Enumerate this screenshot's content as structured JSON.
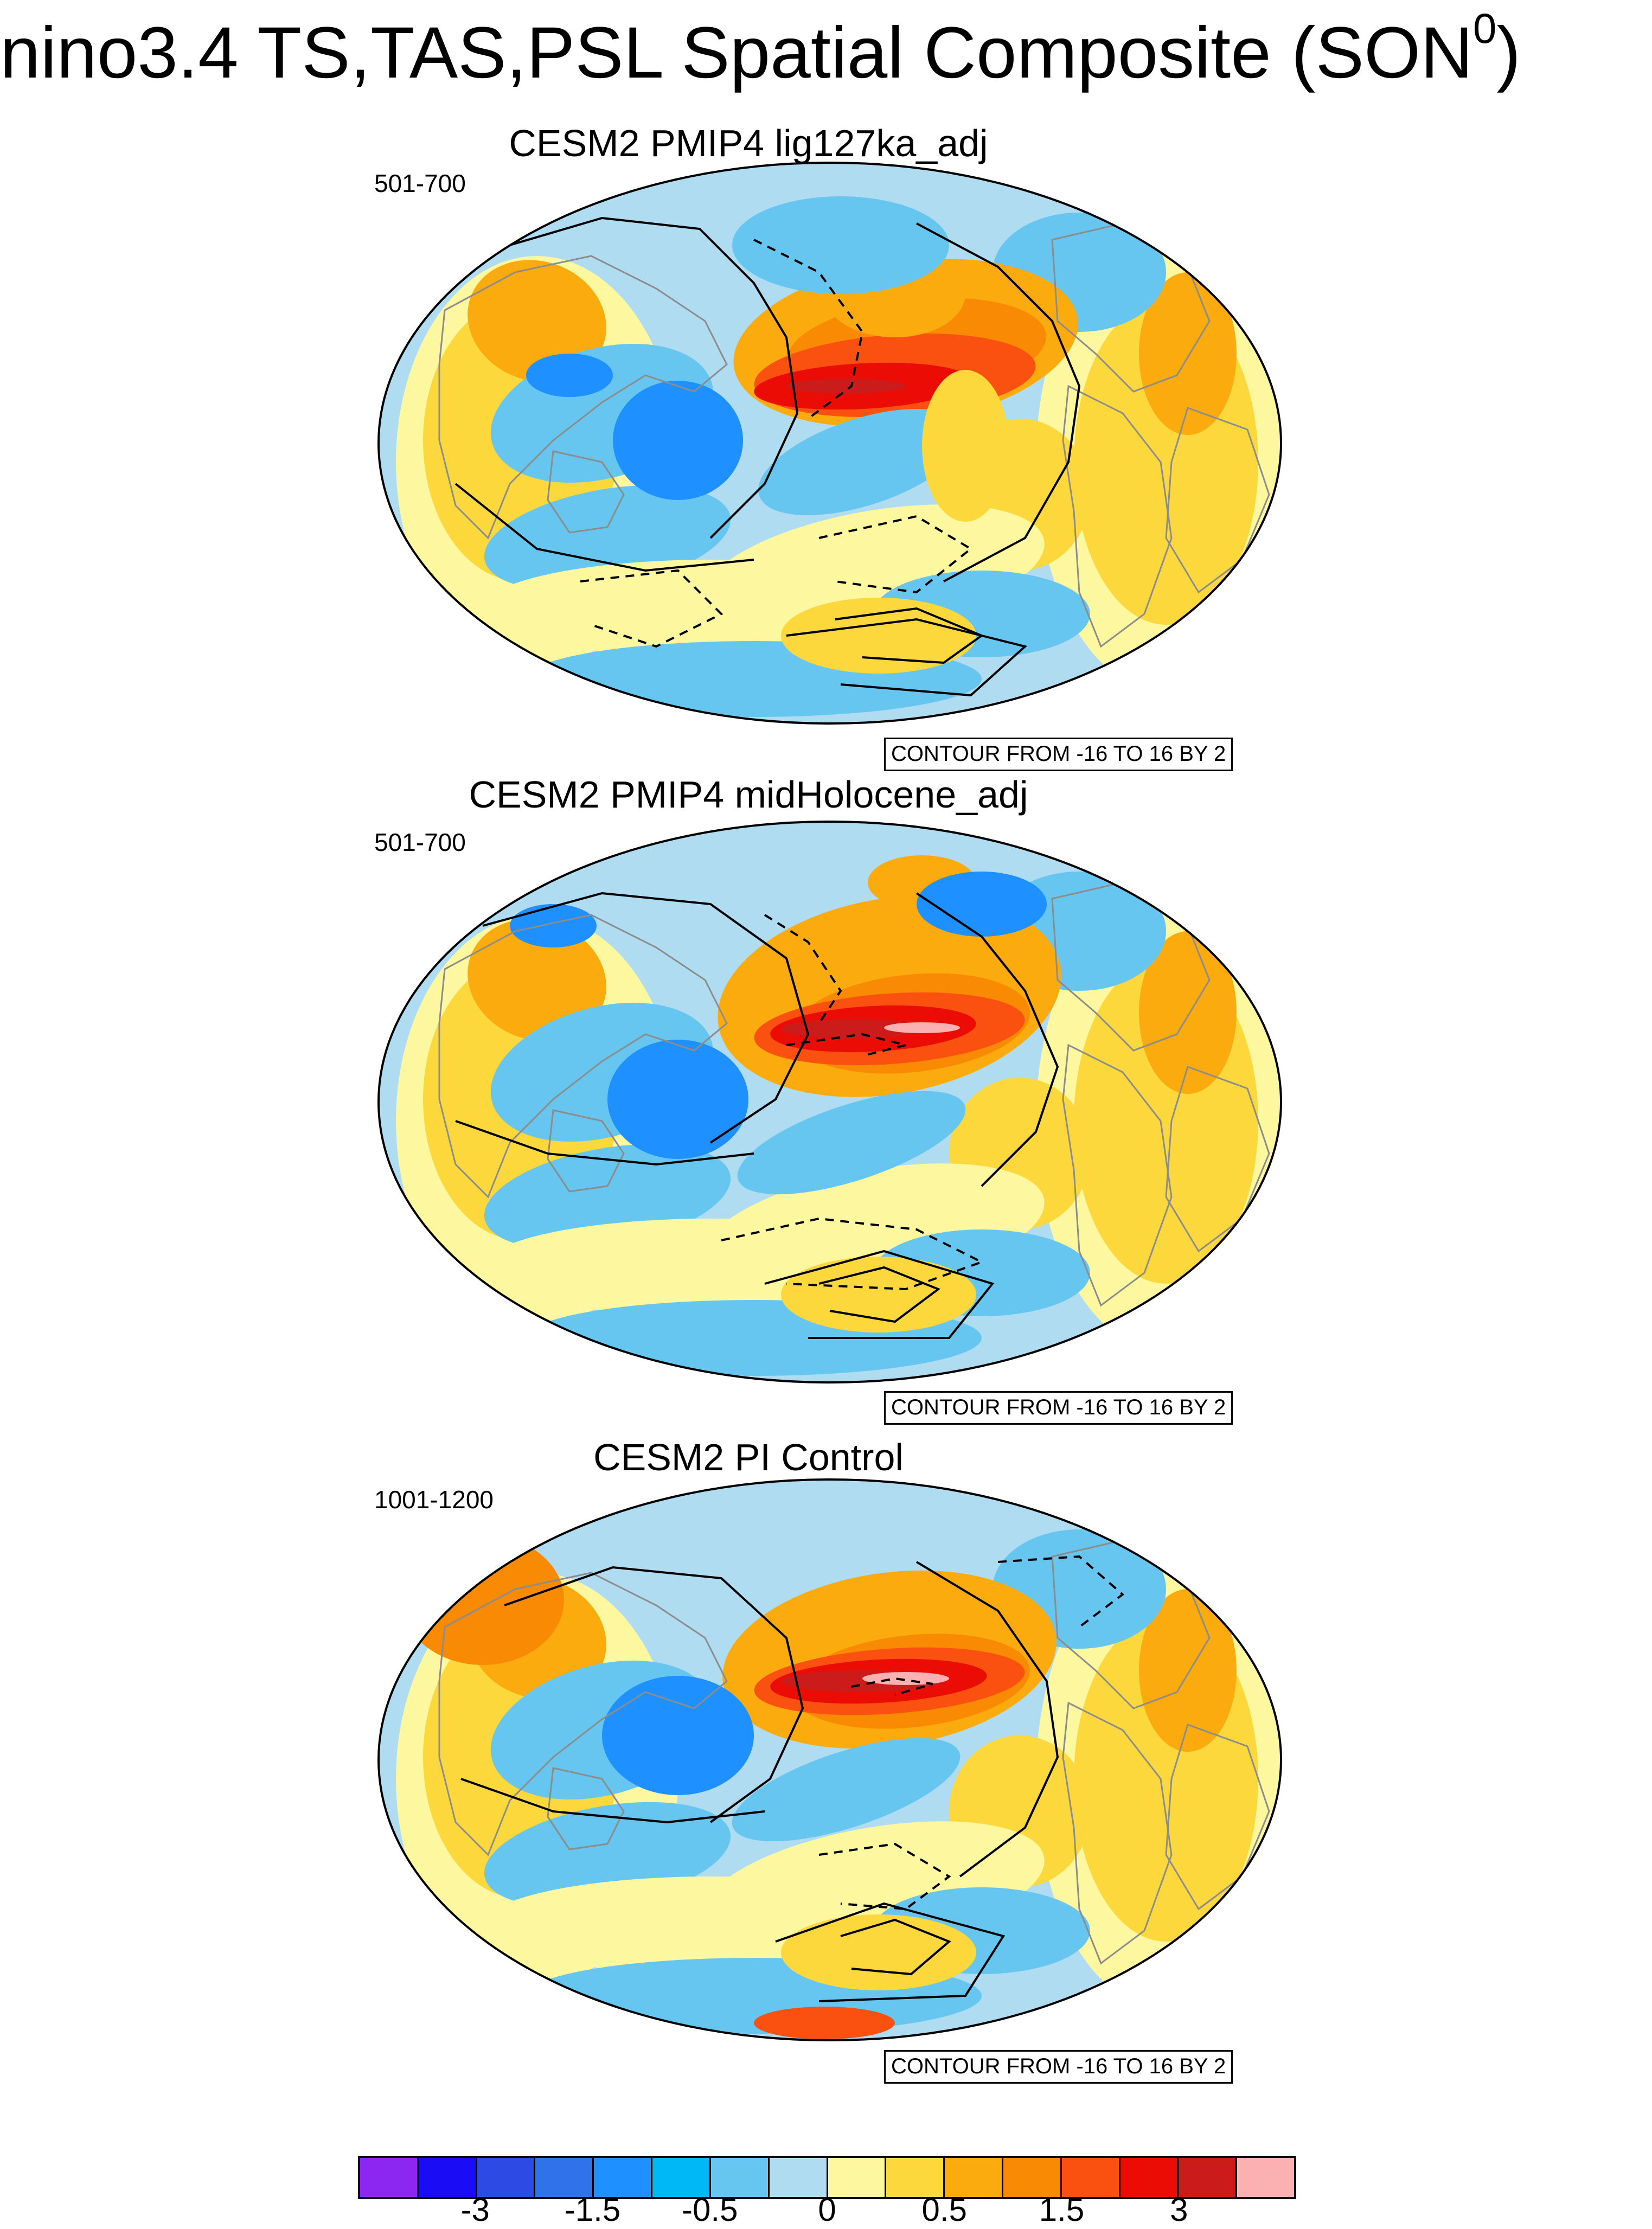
{
  "figure": {
    "title": "nino3.4 TS,TAS,PSL Spatial Composite (SON",
    "title_superscript": "0",
    "title_close": ")"
  },
  "panels": [
    {
      "title": "CESM2 PMIP4 lig127ka_adj",
      "period": "501-700",
      "contour_info": "CONTOUR FROM -16 TO 16 BY 2"
    },
    {
      "title": "CESM2 PMIP4 midHolocene_adj",
      "period": "501-700",
      "contour_info": "CONTOUR FROM -16 TO 16 BY 2"
    },
    {
      "title": "CESM2 PI Control",
      "period": "1001-1200",
      "contour_info": "CONTOUR FROM -16 TO 16 BY 2"
    }
  ],
  "colorbar": {
    "colors": [
      "#8b27f0",
      "#1a0cf5",
      "#2d4ae5",
      "#2f72ea",
      "#1e90ff",
      "#00b8f5",
      "#66c6f0",
      "#b0dcf2",
      "#fdf7a0",
      "#fdd83c",
      "#fbab0d",
      "#f98a04",
      "#fa5110",
      "#ec0c06",
      "#cc1b1b",
      "#fbb1b1"
    ],
    "tick_labels": [
      "-3",
      "-1.5",
      "-0.5",
      "0",
      "0.5",
      "1.5",
      "3"
    ],
    "tick_boundary_index": [
      2,
      4,
      6,
      8,
      10,
      12,
      14
    ]
  },
  "map_colors": {
    "background": "#b0dcf2",
    "light_blue": "#66c6f0",
    "blue": "#1e90ff",
    "deep_blue": "#2f72ea",
    "yellow": "#fdf7a0",
    "gold": "#fdd83c",
    "orange": "#fbab0d",
    "dark_orange": "#f98a04",
    "red_orange": "#fa5110",
    "red": "#ec0c06",
    "dark_red": "#cc1b1b",
    "pink": "#fbb1b1",
    "coast": "#8c8c8c",
    "contour": "#000000"
  }
}
